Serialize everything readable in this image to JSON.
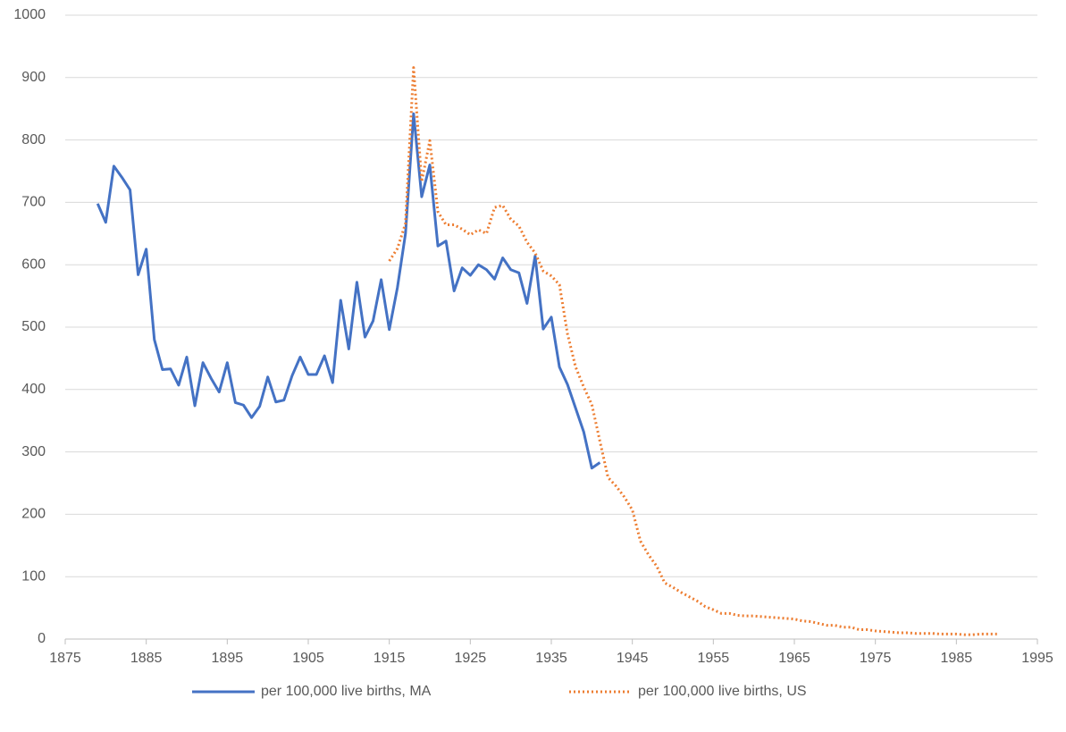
{
  "chart_data": {
    "type": "line",
    "xlim": [
      1875,
      1995
    ],
    "xticks": [
      1875,
      1885,
      1895,
      1905,
      1915,
      1925,
      1935,
      1945,
      1955,
      1965,
      1975,
      1985,
      1995
    ],
    "ylim": [
      0,
      1000
    ],
    "yticks": [
      0,
      100,
      200,
      300,
      400,
      500,
      600,
      700,
      800,
      900,
      1000
    ],
    "grid": true,
    "legend": "bottom",
    "series": [
      {
        "name": "per 100,000 live births, MA",
        "color": "#4472c4",
        "style": "solid",
        "x": [
          1879,
          1880,
          1881,
          1882,
          1883,
          1884,
          1885,
          1886,
          1887,
          1888,
          1889,
          1890,
          1891,
          1892,
          1893,
          1894,
          1895,
          1896,
          1897,
          1898,
          1899,
          1900,
          1901,
          1902,
          1903,
          1904,
          1905,
          1906,
          1907,
          1908,
          1909,
          1910,
          1911,
          1912,
          1913,
          1914,
          1915,
          1916,
          1917,
          1918,
          1919,
          1920,
          1921,
          1922,
          1923,
          1924,
          1925,
          1926,
          1927,
          1928,
          1929,
          1930,
          1931,
          1932,
          1933,
          1934,
          1935,
          1936,
          1937,
          1938,
          1939,
          1940,
          1941
        ],
        "values": [
          698,
          668,
          758,
          740,
          720,
          584,
          625,
          480,
          432,
          433,
          407,
          452,
          374,
          443,
          418,
          396,
          443,
          379,
          375,
          355,
          373,
          420,
          380,
          383,
          422,
          452,
          424,
          424,
          454,
          411,
          543,
          465,
          572,
          484,
          510,
          576,
          496,
          563,
          650,
          842,
          709,
          760,
          630,
          638,
          558,
          595,
          583,
          600,
          592,
          577,
          611,
          592,
          587,
          538,
          614,
          497,
          516,
          436,
          408,
          370,
          332,
          274,
          283
        ]
      },
      {
        "name": "per 100,000 live births, US",
        "color": "#ed7d31",
        "style": "dotted",
        "x": [
          1915,
          1916,
          1917,
          1918,
          1919,
          1920,
          1921,
          1922,
          1923,
          1924,
          1925,
          1926,
          1927,
          1928,
          1929,
          1930,
          1931,
          1932,
          1933,
          1934,
          1935,
          1936,
          1937,
          1938,
          1939,
          1940,
          1941,
          1942,
          1943,
          1944,
          1945,
          1946,
          1947,
          1948,
          1949,
          1950,
          1951,
          1952,
          1953,
          1954,
          1955,
          1956,
          1957,
          1958,
          1959,
          1960,
          1961,
          1962,
          1963,
          1964,
          1965,
          1966,
          1967,
          1968,
          1969,
          1970,
          1971,
          1972,
          1973,
          1974,
          1975,
          1976,
          1977,
          1978,
          1979,
          1980,
          1981,
          1982,
          1983,
          1984,
          1985,
          1986,
          1987,
          1988,
          1989,
          1990
        ],
        "values": [
          606,
          626,
          666,
          916,
          733,
          799,
          685,
          664,
          664,
          657,
          648,
          656,
          650,
          692,
          695,
          673,
          662,
          636,
          619,
          590,
          582,
          568,
          489,
          436,
          404,
          376,
          317,
          259,
          245,
          228,
          207,
          157,
          135,
          117,
          90,
          83,
          75,
          68,
          61,
          52,
          47,
          41,
          41,
          38,
          37,
          37,
          36,
          35,
          34,
          33,
          32,
          29,
          28,
          25,
          22,
          22,
          19,
          19,
          15,
          15,
          13,
          12,
          11,
          10,
          10,
          9,
          9,
          9,
          8,
          8,
          8,
          7,
          7,
          8,
          8,
          8
        ]
      }
    ]
  }
}
